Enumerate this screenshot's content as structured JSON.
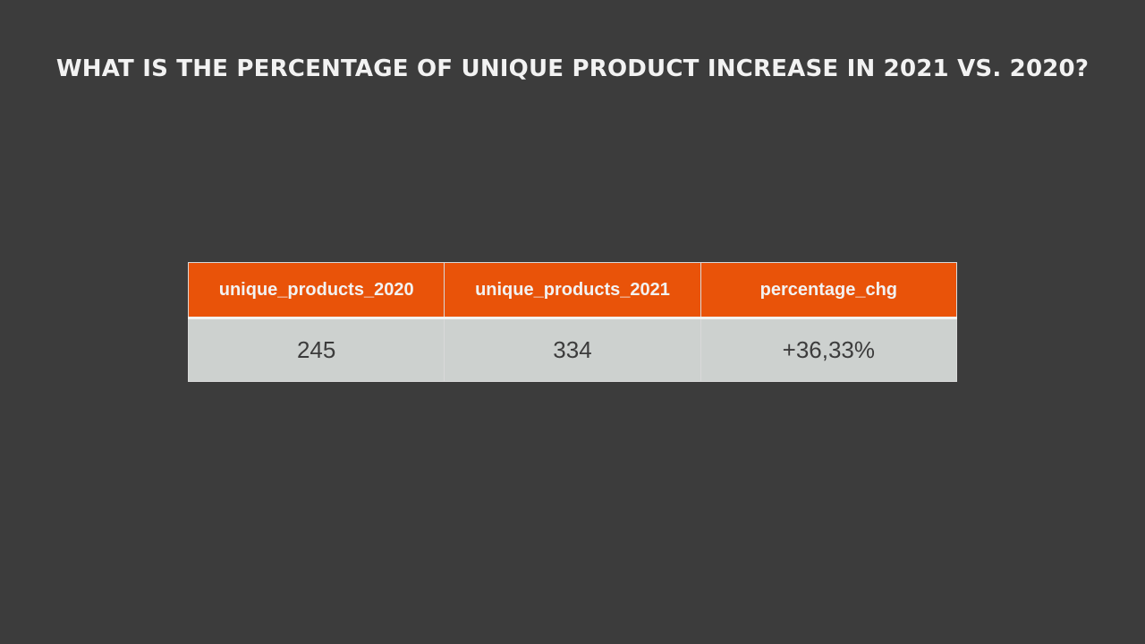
{
  "title": "WHAT IS THE PERCENTAGE OF UNIQUE PRODUCT INCREASE IN 2021 VS. 2020?",
  "table": {
    "headers": [
      "unique_products_2020",
      "unique_products_2021",
      "percentage_chg"
    ],
    "rows": [
      [
        "245",
        "334",
        "+36,33%"
      ]
    ]
  },
  "colors": {
    "background": "#3c3c3c",
    "header_fill": "#e95309",
    "cell_fill": "#cdd1cf",
    "title_text": "#f2f2f2"
  }
}
